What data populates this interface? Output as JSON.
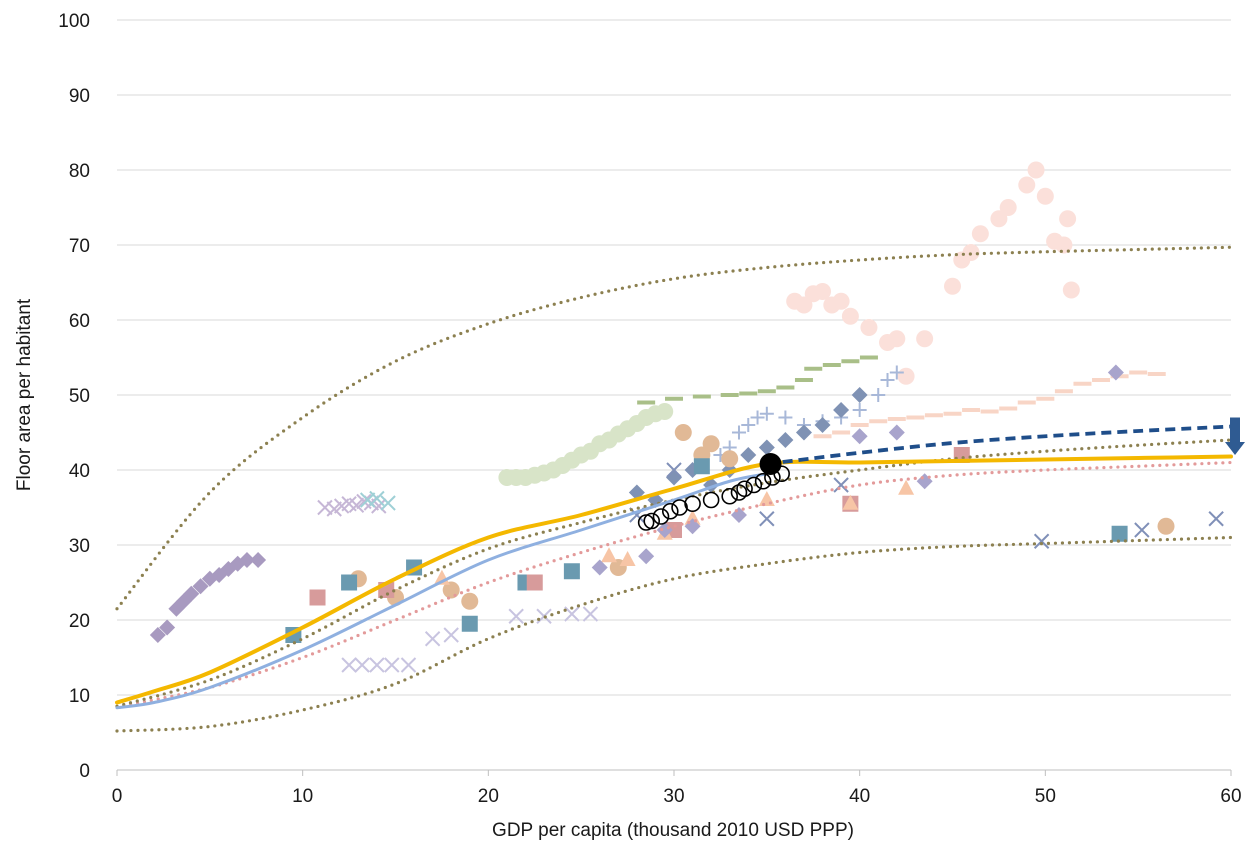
{
  "chart_data": {
    "type": "scatter",
    "title": "",
    "xlabel": "GDP per capita (thousand 2010 USD PPP)",
    "ylabel": "Floor area per habitant",
    "xlim": [
      0,
      60
    ],
    "ylim": [
      0,
      100
    ],
    "x_ticks": [
      "0",
      "10",
      "20",
      "30",
      "40",
      "50",
      "60"
    ],
    "y_ticks": [
      "0",
      "10",
      "20",
      "30",
      "40",
      "50",
      "60",
      "70",
      "80",
      "90",
      "100"
    ],
    "grid": "horizontal",
    "legend": "none",
    "colors": {
      "upper_bound": "#8c8050",
      "central": "#8c8050",
      "lower_bound": "#8c8050",
      "pink_dotted": "#e39a9a",
      "blue_solid": "#8fb0e0",
      "orange_solid": "#f4b800",
      "navy_dashed": "#1f4e8a",
      "arrow": "#2f5b92",
      "highlight": "#000000"
    },
    "lines": [
      {
        "style": "dotted",
        "role": "upper_bound",
        "x": [
          0,
          5,
          10,
          15,
          20,
          25,
          30,
          35,
          40,
          45,
          50,
          55,
          60
        ],
        "y": [
          21.5,
          37,
          47,
          54.5,
          59.5,
          63,
          65.5,
          67,
          68,
          68.7,
          69.1,
          69.4,
          69.7
        ]
      },
      {
        "style": "dotted",
        "role": "central",
        "x": [
          0,
          5,
          10,
          15,
          20,
          25,
          30,
          35,
          40,
          45,
          50,
          55,
          60
        ],
        "y": [
          8.5,
          12,
          17.5,
          24,
          29.5,
          33,
          36,
          38.3,
          40,
          41.5,
          42.5,
          43.3,
          44
        ]
      },
      {
        "style": "dotted",
        "role": "lower_bound",
        "x": [
          0,
          5,
          10,
          15,
          20,
          25,
          30,
          35,
          40,
          45,
          50,
          55,
          60
        ],
        "y": [
          5.2,
          5.8,
          8,
          11.5,
          17.5,
          22,
          25.5,
          27.5,
          29,
          29.8,
          30.2,
          30.6,
          31
        ]
      },
      {
        "style": "dotted",
        "role": "pink_dotted",
        "x": [
          0,
          5,
          10,
          15,
          20,
          25,
          30,
          35,
          40,
          45,
          50,
          55,
          60
        ],
        "y": [
          8.4,
          11,
          15,
          20,
          25,
          29,
          32.5,
          35.5,
          38,
          39.3,
          40,
          40.5,
          41
        ]
      },
      {
        "style": "solid",
        "role": "blue_solid",
        "x": [
          0,
          2,
          5,
          10,
          15,
          20,
          25,
          30,
          33,
          35
        ],
        "y": [
          8.3,
          9,
          11,
          16,
          22,
          28,
          32,
          36,
          38.5,
          39.5
        ]
      },
      {
        "style": "solid",
        "role": "orange_solid",
        "x": [
          0,
          2,
          5,
          10,
          15,
          20,
          25,
          30,
          35,
          40,
          45,
          50,
          55,
          60
        ],
        "y": [
          9,
          10.5,
          13,
          19,
          25.5,
          31,
          34,
          37.5,
          40.8,
          41,
          41.2,
          41.4,
          41.6,
          41.8
        ]
      },
      {
        "style": "dashed",
        "role": "navy_dashed",
        "x": [
          35,
          40,
          45,
          50,
          55,
          60
        ],
        "y": [
          40.8,
          42.3,
          43.6,
          44.5,
          45.2,
          45.8
        ]
      }
    ],
    "arrow": {
      "x": 60,
      "y_from": 47,
      "y_to": 42
    },
    "series": [
      {
        "shape": "diamond",
        "color": "#a89ac0",
        "x": [
          2.2,
          2.7,
          3.2,
          3.6,
          4.0,
          4.5,
          5.0,
          5.5,
          6.0,
          6.5,
          7.0,
          7.6
        ],
        "y": [
          18,
          19,
          21.5,
          22.5,
          23.5,
          24.5,
          25.5,
          26,
          26.8,
          27.5,
          28,
          28
        ]
      },
      {
        "shape": "cross",
        "color": "#c6b7d6",
        "x": [
          11.2,
          11.7,
          12.1,
          12.5,
          12.9,
          13.3,
          13.7,
          14.1
        ],
        "y": [
          35,
          34.8,
          35.2,
          35.5,
          35.3,
          35.8,
          35.6,
          35.2
        ]
      },
      {
        "shape": "cross",
        "color": "#9fd0d6",
        "x": [
          13.5,
          14.0,
          14.6
        ],
        "y": [
          36,
          36.2,
          35.6
        ]
      },
      {
        "shape": "cross",
        "color": "#c8c4e0",
        "x": [
          12.5,
          13.2,
          14.0,
          14.8,
          15.7,
          17.0,
          18.0,
          21.5,
          23.0,
          24.5,
          25.5
        ],
        "y": [
          14,
          14,
          14,
          14,
          14,
          17.5,
          18,
          20.5,
          20.5,
          20.8,
          20.8
        ]
      },
      {
        "shape": "circle",
        "color": "#d8e4c8",
        "x": [
          21.0,
          21.5,
          22.0,
          22.5,
          23.0,
          23.5,
          24.0,
          24.5,
          25.0,
          25.5,
          26.0,
          26.5,
          27.0,
          27.5,
          28.0,
          28.5,
          29.0,
          29.5
        ],
        "y": [
          39,
          39,
          39,
          39.3,
          39.6,
          40,
          40.6,
          41.3,
          42,
          42.5,
          43.5,
          44,
          44.8,
          45.5,
          46.2,
          47,
          47.5,
          47.8
        ]
      },
      {
        "shape": "circle",
        "color": "#fbe0da",
        "x": [
          36.5,
          37.0,
          37.5,
          38.0,
          38.5,
          39.0,
          39.5,
          40.5,
          41.5,
          42.0,
          42.5,
          43.5,
          45.0,
          45.5,
          46.0,
          46.5,
          47.5,
          48.0,
          49.0,
          49.5,
          50.0,
          50.5,
          51.0,
          51.2,
          51.4
        ],
        "y": [
          62.5,
          62,
          63.5,
          63.8,
          62,
          62.5,
          60.5,
          59,
          57,
          57.5,
          52.5,
          57.5,
          64.5,
          68,
          69,
          71.5,
          73.5,
          75,
          78,
          80,
          76.5,
          70.5,
          70,
          73.5,
          64
        ]
      },
      {
        "shape": "dash",
        "color": "#a9bf88",
        "x": [
          28.5,
          30,
          31.5,
          33,
          34,
          35,
          36,
          37,
          37.5,
          38.5,
          39.5,
          40.5
        ],
        "y": [
          49,
          49.5,
          49.8,
          50,
          50.2,
          50.5,
          51,
          52,
          53.5,
          54,
          54.5,
          55
        ]
      },
      {
        "shape": "dash",
        "color": "#f8d5c6",
        "x": [
          38,
          39,
          40,
          41,
          42,
          43,
          44,
          45,
          46,
          47,
          48,
          49,
          50,
          51,
          52,
          53,
          54,
          55,
          56
        ],
        "y": [
          44.5,
          45,
          46,
          46.5,
          46.8,
          47,
          47.3,
          47.5,
          48,
          47.8,
          48.2,
          49,
          49.5,
          50.5,
          51.5,
          52,
          52.5,
          53,
          52.8
        ]
      },
      {
        "shape": "plus",
        "color": "#a8b8d8",
        "x": [
          32.5,
          33.0,
          33.5,
          34.0,
          34.5,
          35.0,
          36.0,
          37.0,
          38.0,
          39.0,
          40.0,
          41.0,
          41.5,
          42.0
        ],
        "y": [
          42,
          43,
          45,
          46,
          47,
          47.5,
          47,
          46,
          46.5,
          47,
          48,
          50,
          52,
          53
        ]
      },
      {
        "shape": "diamond",
        "color": "#7f92b4",
        "x": [
          28.0,
          29.0,
          30.0,
          31.0,
          32.0,
          33.0,
          34.0,
          35.0,
          36.0,
          37.0,
          38.0,
          39.0,
          40.0
        ],
        "y": [
          37,
          36,
          39,
          40,
          38,
          40,
          42,
          43,
          44,
          45,
          46,
          48,
          50
        ]
      },
      {
        "shape": "circle",
        "color": "#e1b996",
        "x": [
          13.0,
          15.0,
          18.0,
          19.0,
          27.0,
          30.5,
          31.5,
          32.0,
          33.0,
          56.5
        ],
        "y": [
          25.5,
          23,
          24,
          22.5,
          27,
          45,
          42,
          43.5,
          41.5,
          32.5
        ]
      },
      {
        "shape": "square",
        "color": "#6a9ab0",
        "x": [
          9.5,
          12.5,
          16.0,
          19.0,
          22.0,
          24.5,
          31.5,
          54.0
        ],
        "y": [
          18,
          25,
          27,
          19.5,
          25,
          26.5,
          40.5,
          31.5
        ]
      },
      {
        "shape": "square",
        "color": "#d79b9b",
        "x": [
          10.8,
          14.5,
          22.5,
          30.0,
          39.5,
          45.5
        ],
        "y": [
          23,
          24,
          25,
          32,
          35.5,
          42
        ]
      },
      {
        "shape": "triangle",
        "color": "#f7c5a6",
        "x": [
          17.5,
          26.5,
          27.5,
          29.5,
          31.0,
          35.0,
          39.5,
          42.5
        ],
        "y": [
          25.5,
          28.5,
          28,
          31.5,
          33.5,
          36,
          35.5,
          37.5
        ]
      },
      {
        "shape": "diamond",
        "color": "#a8a4cc",
        "x": [
          26.0,
          28.5,
          29.5,
          31.0,
          33.5,
          40.0,
          42.0,
          43.5,
          53.8
        ],
        "y": [
          27,
          28.5,
          32,
          32.5,
          34,
          44.5,
          45,
          38.5,
          53
        ]
      },
      {
        "shape": "cross",
        "color": "#8090b8",
        "x": [
          28.0,
          30.0,
          35.0,
          39.0,
          49.8,
          55.2,
          59.2
        ],
        "y": [
          34,
          40,
          33.5,
          38,
          30.5,
          32,
          33.5
        ]
      },
      {
        "shape": "circle-open",
        "color": "#000000",
        "x": [
          28.5,
          28.8,
          29.3,
          29.8,
          30.3,
          31.0,
          32.0,
          33.0,
          33.5,
          33.8,
          34.3,
          34.8,
          35.3,
          35.8
        ],
        "y": [
          33,
          33.2,
          33.8,
          34.5,
          35,
          35.5,
          36,
          36.5,
          37,
          37.5,
          38,
          38.5,
          39,
          39.5
        ]
      },
      {
        "shape": "circle-solid",
        "color": "#000000",
        "x": [
          35.2
        ],
        "y": [
          40.8
        ]
      }
    ]
  }
}
